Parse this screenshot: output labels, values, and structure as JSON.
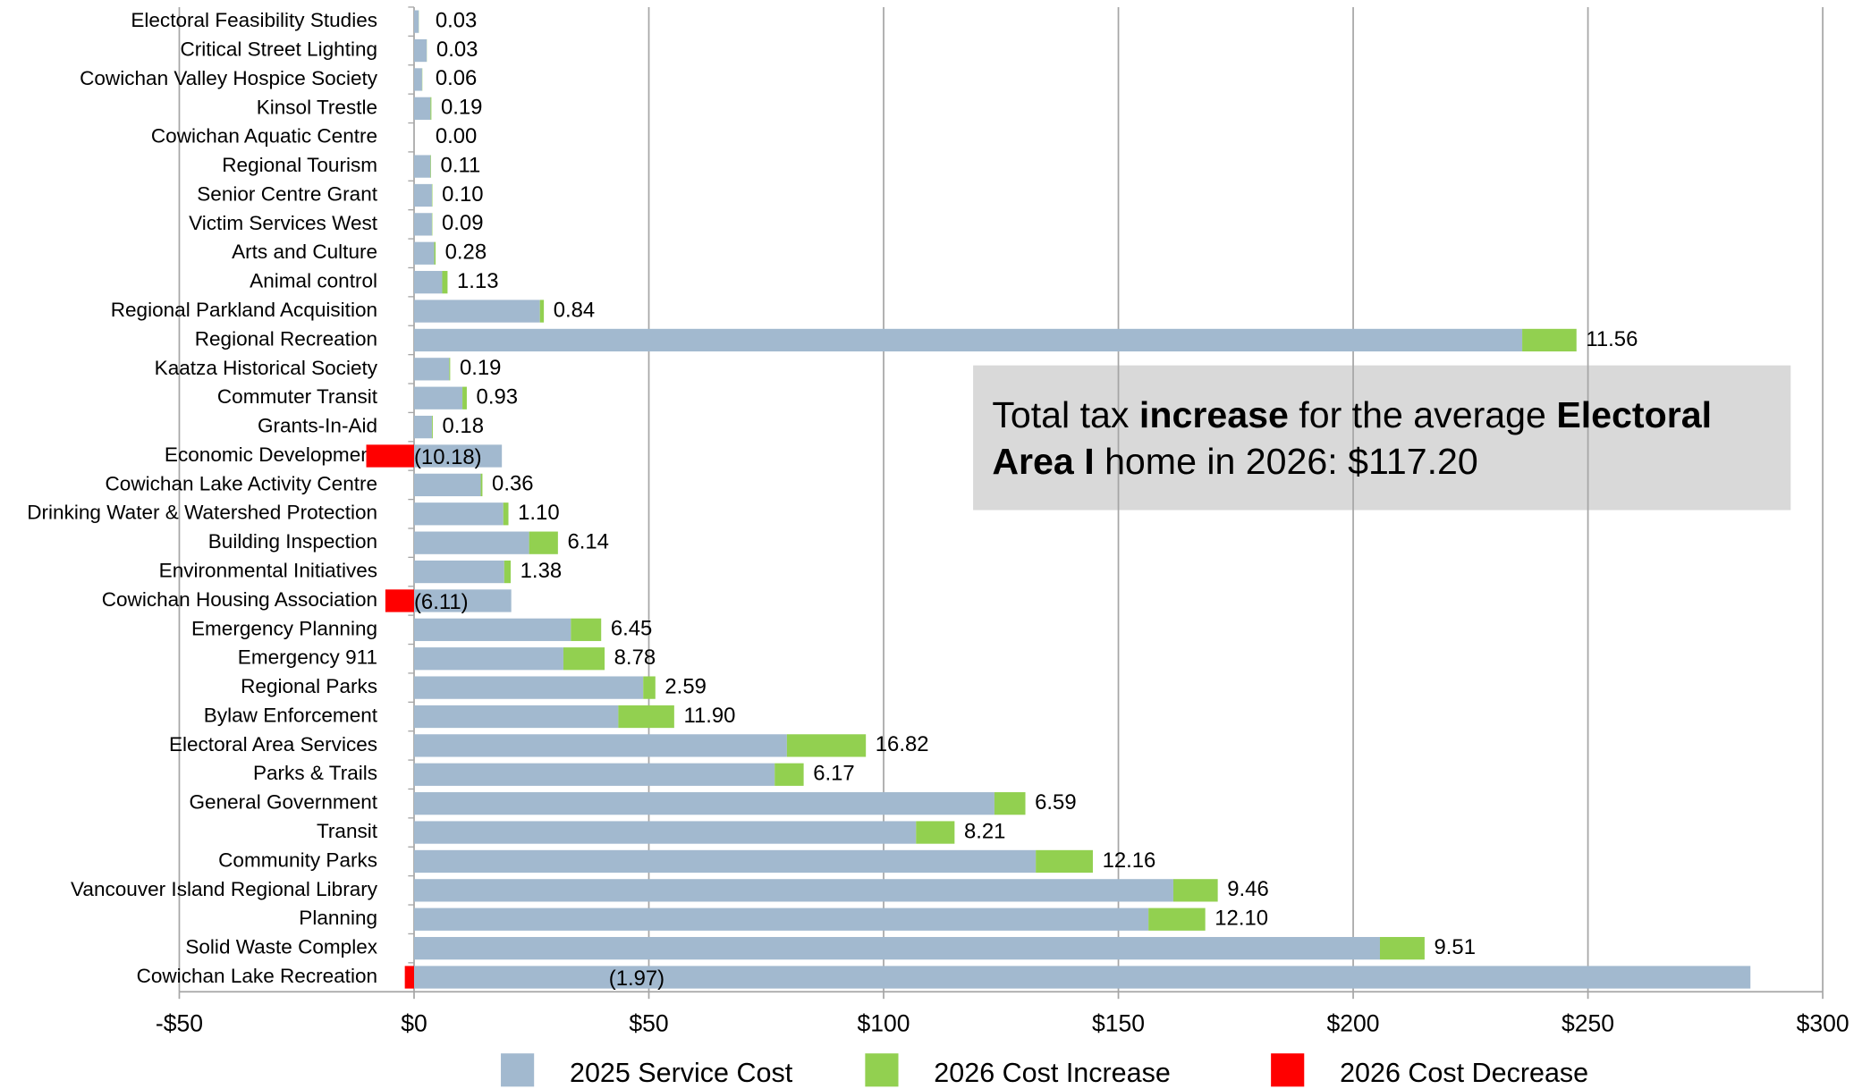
{
  "chart_data": {
    "type": "stacked_barh",
    "categories": [
      "Electoral Feasibility Studies",
      "Critical Street Lighting",
      "Cowichan Valley Hospice Society",
      "Kinsol Trestle",
      "Cowichan Aquatic Centre",
      "Regional Tourism",
      "Senior Centre Grant",
      "Victim Services West",
      "Arts and Culture",
      "Animal control",
      "Regional Parkland Acquisition",
      "Regional Recreation",
      "Kaatza Historical Society",
      "Commuter Transit",
      "Grants-In-Aid",
      "Economic Development",
      "Cowichan Lake Activity Centre",
      "Drinking Water & Watershed Protection",
      "Building Inspection",
      "Environmental Initiatives",
      "Cowichan Housing Association",
      "Emergency Planning",
      "Emergency 911",
      "Regional Parks",
      "Bylaw Enforcement",
      "Electoral Area Services",
      "Parks & Trails",
      "General Government",
      "Transit",
      "Community Parks",
      "Vancouver Island Regional Library",
      "Planning",
      "Solid Waste Complex",
      "Cowichan Lake Recreation"
    ],
    "series": [
      {
        "name": "2025 Service Cost",
        "color": "#a2b9cf",
        "values": [
          1,
          2.7,
          1.7,
          3.5,
          0,
          3.5,
          3.8,
          3.8,
          4.3,
          6,
          26.8,
          236,
          7.5,
          10.3,
          3.8,
          18.7,
          14.2,
          19,
          24.5,
          19.2,
          20.7,
          33.4,
          31.8,
          48.8,
          43.5,
          79.4,
          76.8,
          123.6,
          106.9,
          132.4,
          161.7,
          156.4,
          205.7,
          284.6
        ]
      },
      {
        "name": "2026 Cost Increase",
        "color": "#92d050",
        "values": [
          0.03,
          0.03,
          0.06,
          0.19,
          0.0,
          0.11,
          0.1,
          0.09,
          0.28,
          1.13,
          0.84,
          11.56,
          0.19,
          0.93,
          0.18,
          null,
          0.36,
          1.1,
          6.14,
          1.38,
          null,
          6.45,
          8.78,
          2.59,
          11.9,
          16.82,
          6.17,
          6.59,
          8.21,
          12.16,
          9.46,
          12.1,
          9.51,
          null
        ],
        "value_labels": [
          "0.03",
          "0.03",
          "0.06",
          "0.19",
          "0.00",
          "0.11",
          "0.10",
          "0.09",
          "0.28",
          "1.13",
          "0.84",
          "11.56",
          "0.19",
          "0.93",
          "0.18",
          null,
          "0.36",
          "1.10",
          "6.14",
          "1.38",
          null,
          "6.45",
          "8.78",
          "2.59",
          "11.90",
          "16.82",
          "6.17",
          "6.59",
          "8.21",
          "12.16",
          "9.46",
          "12.10",
          "9.51",
          null
        ]
      },
      {
        "name": "2026 Cost Decrease",
        "color": "#ff0000",
        "values": [
          null,
          null,
          null,
          null,
          null,
          null,
          null,
          null,
          null,
          null,
          null,
          null,
          null,
          null,
          null,
          -10.18,
          null,
          null,
          null,
          null,
          -6.11,
          null,
          null,
          null,
          null,
          null,
          null,
          null,
          null,
          null,
          null,
          null,
          null,
          -1.97
        ],
        "value_labels": [
          null,
          null,
          null,
          null,
          null,
          null,
          null,
          null,
          null,
          null,
          null,
          null,
          null,
          null,
          null,
          "(10.18)",
          null,
          null,
          null,
          null,
          "(6.11)",
          null,
          null,
          null,
          null,
          null,
          null,
          null,
          null,
          null,
          null,
          null,
          null,
          "(1.97)"
        ]
      }
    ],
    "xlim": [
      -50,
      300
    ],
    "xticks": [
      {
        "value": -50,
        "label": "-$50"
      },
      {
        "value": 0,
        "label": "$0"
      },
      {
        "value": 50,
        "label": "$50"
      },
      {
        "value": 100,
        "label": "$100"
      },
      {
        "value": 150,
        "label": "$150"
      },
      {
        "value": 200,
        "label": "$200"
      },
      {
        "value": 250,
        "label": "$250"
      },
      {
        "value": 300,
        "label": "$300"
      }
    ],
    "grid": true,
    "legend": "bottom",
    "annotation": [
      [
        {
          "text": "Total tax ",
          "bold": false
        },
        {
          "text": "increase",
          "bold": true
        },
        {
          "text": " for the average ",
          "bold": false
        },
        {
          "text": "Electoral",
          "bold": true
        }
      ],
      [
        {
          "text": "Area I",
          "bold": true
        },
        {
          "text": " home in 2026: $117.20",
          "bold": false
        }
      ]
    ]
  }
}
